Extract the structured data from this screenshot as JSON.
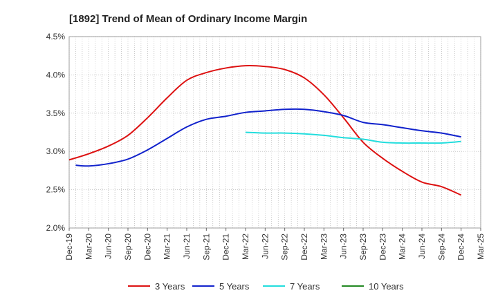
{
  "chart_data": {
    "type": "line",
    "title": "[1892]  Trend of Mean of Ordinary Income Margin",
    "xlabel": "",
    "ylabel": "",
    "x_ticks": [
      "Dec-19",
      "Mar-20",
      "Jun-20",
      "Sep-20",
      "Dec-20",
      "Mar-21",
      "Jun-21",
      "Sep-21",
      "Dec-21",
      "Mar-22",
      "Jun-22",
      "Sep-22",
      "Dec-22",
      "Mar-23",
      "Jun-23",
      "Sep-23",
      "Dec-23",
      "Mar-24",
      "Jun-24",
      "Sep-24",
      "Dec-24",
      "Mar-25"
    ],
    "y_ticks": [
      "2.0%",
      "2.5%",
      "3.0%",
      "3.5%",
      "4.0%",
      "4.5%"
    ],
    "ylim": [
      2.0,
      4.5
    ],
    "y_unit": "%",
    "grid": "dotted, vertical and horizontal",
    "legend_position": "bottom",
    "series": [
      {
        "name": "3 Years",
        "color": "#dd1111",
        "x": [
          "Dec-19",
          "Mar-20",
          "Jun-20",
          "Sep-20",
          "Dec-20",
          "Mar-21",
          "Jun-21",
          "Sep-21",
          "Dec-21",
          "Mar-22",
          "Jun-22",
          "Sep-22",
          "Dec-22",
          "Mar-23",
          "Jun-23",
          "Sep-23",
          "Dec-23",
          "Mar-24",
          "Jun-24",
          "Sep-24",
          "Dec-24"
        ],
        "values": [
          2.89,
          2.97,
          3.07,
          3.21,
          3.44,
          3.7,
          3.93,
          4.03,
          4.09,
          4.12,
          4.11,
          4.07,
          3.96,
          3.74,
          3.44,
          3.12,
          2.91,
          2.74,
          2.6,
          2.54,
          2.43
        ]
      },
      {
        "name": "5 Years",
        "color": "#1122cc",
        "x": [
          "Jan-20",
          "Mar-20",
          "Jun-20",
          "Sep-20",
          "Dec-20",
          "Mar-21",
          "Jun-21",
          "Sep-21",
          "Dec-21",
          "Mar-22",
          "Jun-22",
          "Sep-22",
          "Dec-22",
          "Mar-23",
          "Jun-23",
          "Sep-23",
          "Dec-23",
          "Mar-24",
          "Jun-24",
          "Sep-24",
          "Dec-24"
        ],
        "values": [
          2.82,
          2.81,
          2.84,
          2.9,
          3.02,
          3.17,
          3.32,
          3.42,
          3.46,
          3.51,
          3.53,
          3.55,
          3.55,
          3.52,
          3.47,
          3.38,
          3.35,
          3.31,
          3.27,
          3.24,
          3.19
        ]
      },
      {
        "name": "7 Years",
        "color": "#22dddd",
        "x": [
          "Mar-22",
          "Jun-22",
          "Sep-22",
          "Dec-22",
          "Mar-23",
          "Jun-23",
          "Sep-23",
          "Dec-23",
          "Mar-24",
          "Jun-24",
          "Sep-24",
          "Dec-24"
        ],
        "values": [
          3.25,
          3.24,
          3.24,
          3.23,
          3.21,
          3.18,
          3.16,
          3.12,
          3.11,
          3.11,
          3.11,
          3.13
        ]
      },
      {
        "name": "10 Years",
        "color": "#228822",
        "x": [],
        "values": []
      }
    ]
  }
}
